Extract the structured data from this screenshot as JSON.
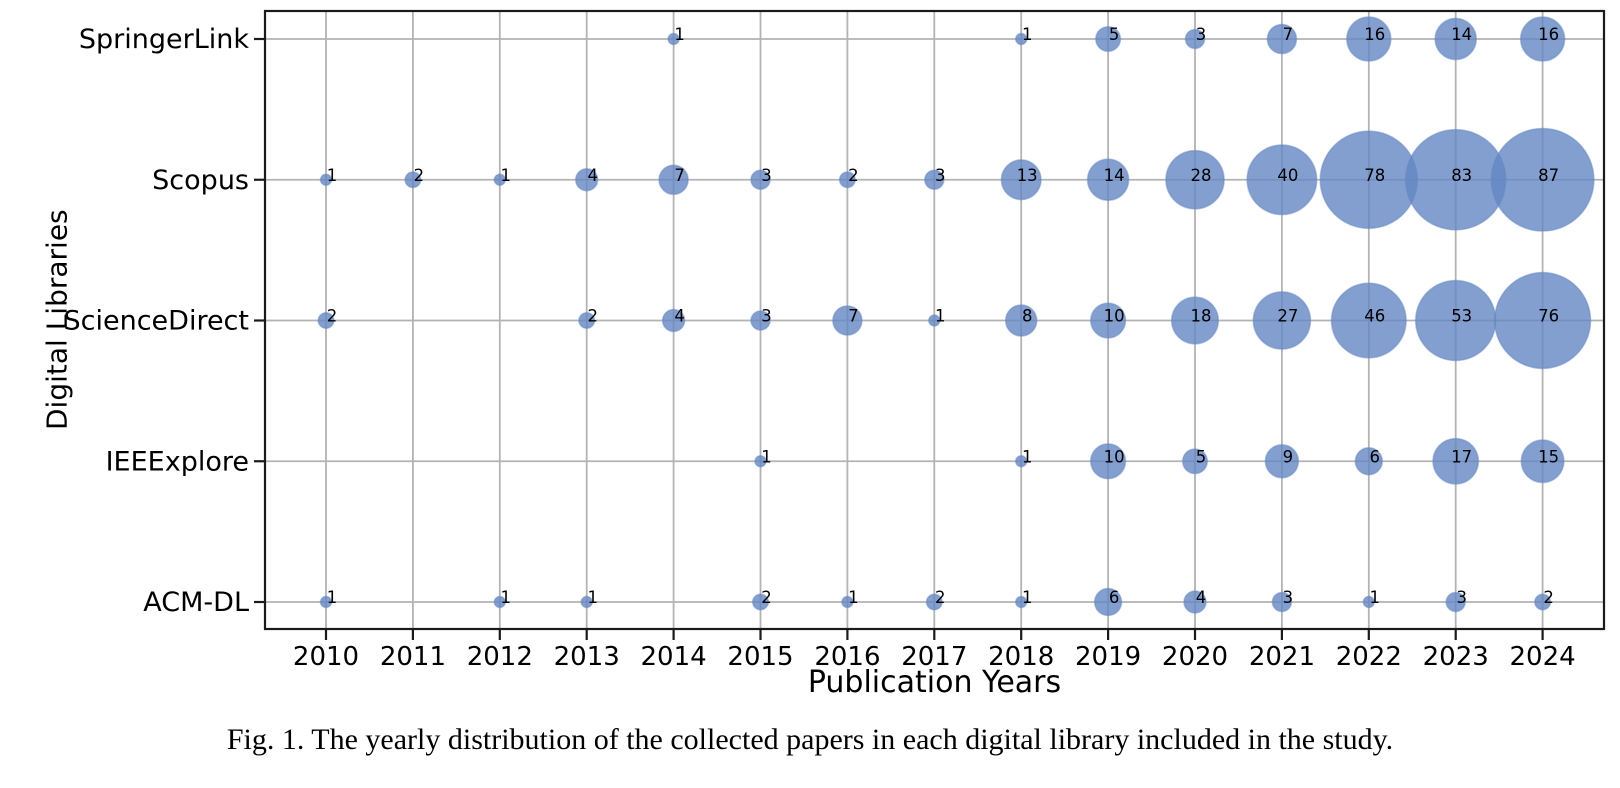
{
  "figure": {
    "caption": "Fig. 1.  The yearly distribution of the collected papers in each digital library included in the study."
  },
  "chart_data": {
    "type": "scatter",
    "variant": "bubble",
    "title": "",
    "xlabel": "Publication Years",
    "ylabel": "Digital Libraries",
    "x": [
      2010,
      2011,
      2012,
      2013,
      2014,
      2015,
      2016,
      2017,
      2018,
      2019,
      2020,
      2021,
      2022,
      2023,
      2024
    ],
    "y_categories": [
      "SpringerLink",
      "Scopus",
      "ScienceDirect",
      "IEEExplore",
      "ACM-DL"
    ],
    "series": [
      {
        "name": "SpringerLink",
        "values": [
          null,
          null,
          null,
          null,
          1,
          null,
          null,
          null,
          1,
          5,
          3,
          7,
          16,
          14,
          16
        ]
      },
      {
        "name": "Scopus",
        "values": [
          1,
          2,
          1,
          4,
          7,
          3,
          2,
          3,
          13,
          14,
          28,
          40,
          78,
          83,
          87
        ]
      },
      {
        "name": "ScienceDirect",
        "values": [
          2,
          null,
          null,
          2,
          4,
          3,
          7,
          1,
          8,
          10,
          18,
          27,
          46,
          53,
          76
        ]
      },
      {
        "name": "IEEExplore",
        "values": [
          null,
          null,
          null,
          null,
          null,
          1,
          null,
          null,
          1,
          10,
          5,
          9,
          6,
          17,
          15
        ]
      },
      {
        "name": "ACM-DL",
        "values": [
          1,
          null,
          1,
          1,
          null,
          2,
          1,
          2,
          1,
          6,
          4,
          3,
          1,
          3,
          2
        ]
      }
    ],
    "legend": "none",
    "grid": true,
    "grid_color": "#B3B3B3",
    "bubble_fill": "#6487C3",
    "bubble_alpha": 0.8,
    "value_label_color": "#000000",
    "size_encoding": "bubble area proportional to paper count; each bubble is labeled with its count"
  }
}
